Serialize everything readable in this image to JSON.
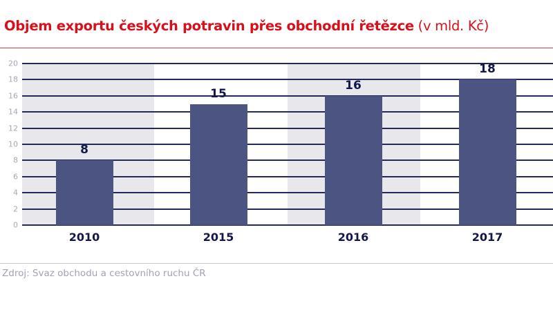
{
  "header": {
    "title_main": "Objem exportu českých potravin přes obchodní řetězce",
    "title_unit": " (v mld. Kč)"
  },
  "footer": {
    "source": "Zdroj: Svaz obchodu a cestovního ruchu ČR"
  },
  "colors": {
    "title": "#d7101c",
    "title_rule": "#e03a44",
    "bar": "#4c5582",
    "band": "#e8e7ec",
    "gridline": "#23285a",
    "label": "#12184a",
    "tick": "#a8a6b8"
  },
  "chart_data": {
    "type": "bar",
    "title": "Objem exportu českých potravin přes obchodní řetězce (v mld. Kč)",
    "categories": [
      "2010",
      "2015",
      "2016",
      "2017"
    ],
    "values": [
      8,
      15,
      16,
      18
    ],
    "data_labels": [
      "8",
      "15",
      "16",
      "18"
    ],
    "xlabel": "",
    "ylabel": "",
    "ylim": [
      0,
      20
    ],
    "yticks": [
      "0",
      "2",
      "4",
      "6",
      "8",
      "10",
      "12",
      "14",
      "16",
      "18",
      "20"
    ],
    "grid": true,
    "legend": null,
    "source": "Zdroj: Svaz obchodu a cestovního ruchu ČR"
  }
}
